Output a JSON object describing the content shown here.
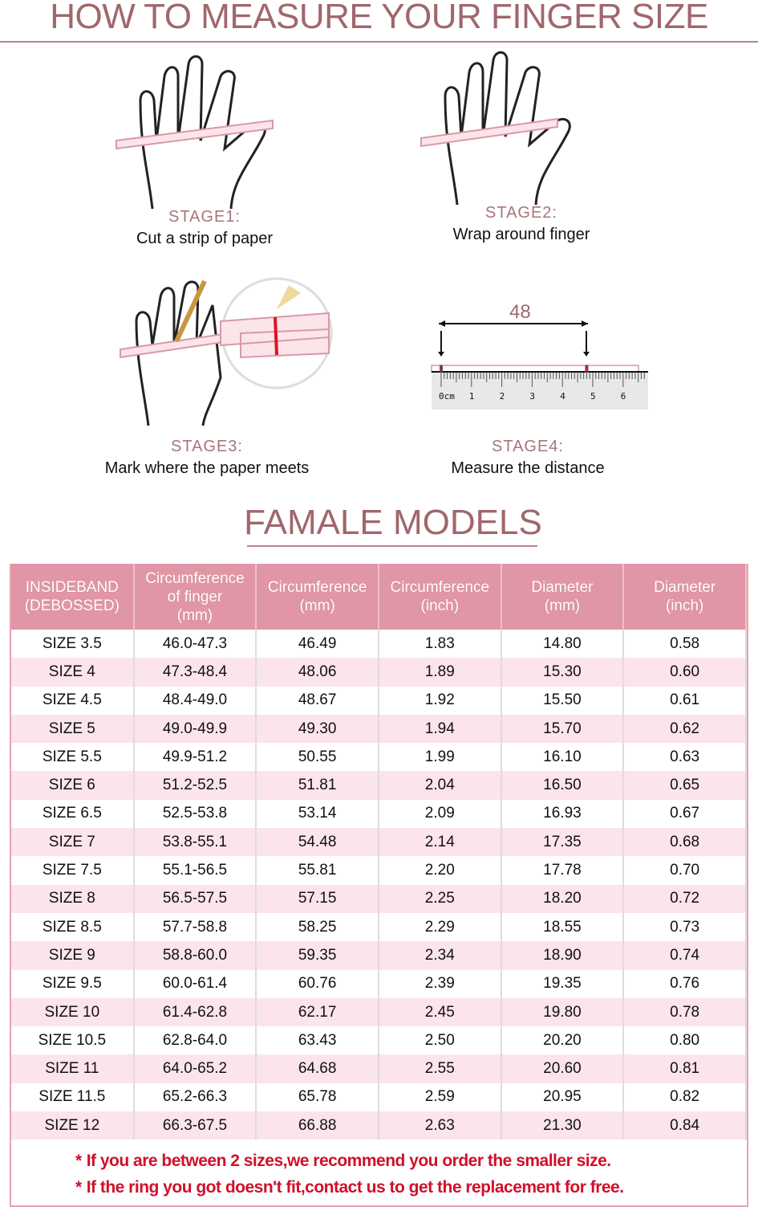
{
  "title": "HOW TO MEASURE YOUR FINGER SIZE",
  "stages": [
    {
      "label": "STAGE1:",
      "desc": "Cut a strip of paper"
    },
    {
      "label": "STAGE2:",
      "desc": "Wrap around finger"
    },
    {
      "label": "STAGE3:",
      "desc": "Mark where the paper meets"
    },
    {
      "label": "STAGE4:",
      "desc": "Measure the distance"
    }
  ],
  "ruler": {
    "measure": "48",
    "ticks": [
      "0cm",
      "1",
      "2",
      "3",
      "4",
      "5",
      "6"
    ]
  },
  "subtitle": "FAMALE MODELS",
  "colors": {
    "header": "#e096a6",
    "alt_row": "#fbe4ea",
    "title": "#a0676b",
    "note": "#d0102a"
  },
  "table": {
    "headers": [
      [
        "INSIDEBAND",
        "(DEBOSSED)"
      ],
      [
        "Circumference",
        "of finger",
        "(mm)"
      ],
      [
        "Circumference",
        "(mm)"
      ],
      [
        "Circumference",
        "(inch)"
      ],
      [
        "Diameter",
        "(mm)"
      ],
      [
        "Diameter",
        "(inch)"
      ]
    ],
    "rows": [
      [
        "SIZE 3.5",
        "46.0-47.3",
        "46.49",
        "1.83",
        "14.80",
        "0.58"
      ],
      [
        "SIZE 4",
        "47.3-48.4",
        "48.06",
        "1.89",
        "15.30",
        "0.60"
      ],
      [
        "SIZE 4.5",
        "48.4-49.0",
        "48.67",
        "1.92",
        "15.50",
        "0.61"
      ],
      [
        "SIZE 5",
        "49.0-49.9",
        "49.30",
        "1.94",
        "15.70",
        "0.62"
      ],
      [
        "SIZE 5.5",
        "49.9-51.2",
        "50.55",
        "1.99",
        "16.10",
        "0.63"
      ],
      [
        "SIZE 6",
        "51.2-52.5",
        "51.81",
        "2.04",
        "16.50",
        "0.65"
      ],
      [
        "SIZE 6.5",
        "52.5-53.8",
        "53.14",
        "2.09",
        "16.93",
        "0.67"
      ],
      [
        "SIZE 7",
        "53.8-55.1",
        "54.48",
        "2.14",
        "17.35",
        "0.68"
      ],
      [
        "SIZE 7.5",
        "55.1-56.5",
        "55.81",
        "2.20",
        "17.78",
        "0.70"
      ],
      [
        "SIZE 8",
        "56.5-57.5",
        "57.15",
        "2.25",
        "18.20",
        "0.72"
      ],
      [
        "SIZE 8.5",
        "57.7-58.8",
        "58.25",
        "2.29",
        "18.55",
        "0.73"
      ],
      [
        "SIZE 9",
        "58.8-60.0",
        "59.35",
        "2.34",
        "18.90",
        "0.74"
      ],
      [
        "SIZE 9.5",
        "60.0-61.4",
        "60.76",
        "2.39",
        "19.35",
        "0.76"
      ],
      [
        "SIZE 10",
        "61.4-62.8",
        "62.17",
        "2.45",
        "19.80",
        "0.78"
      ],
      [
        "SIZE 10.5",
        "62.8-64.0",
        "63.43",
        "2.50",
        "20.20",
        "0.80"
      ],
      [
        "SIZE 11",
        "64.0-65.2",
        "64.68",
        "2.55",
        "20.60",
        "0.81"
      ],
      [
        "SIZE 11.5",
        "65.2-66.3",
        "65.78",
        "2.59",
        "20.95",
        "0.82"
      ],
      [
        "SIZE 12",
        "66.3-67.5",
        "66.88",
        "2.63",
        "21.30",
        "0.84"
      ]
    ]
  },
  "notes": [
    "If you are between 2 sizes,we recommend you order the smaller size.",
    "If the ring you got doesn't fit,contact us to get the replacement for free."
  ]
}
